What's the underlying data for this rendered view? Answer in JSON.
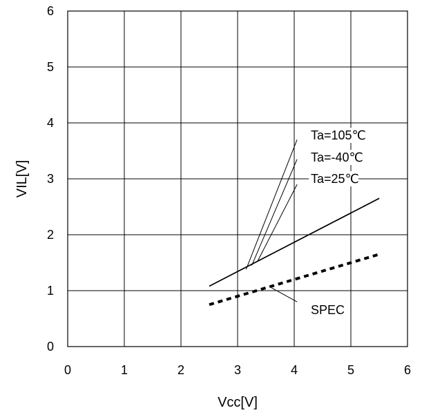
{
  "chart_data": {
    "type": "line",
    "title": "",
    "xlabel": "Vcc[V]",
    "ylabel": "VIL[V]",
    "xlim": [
      0,
      6
    ],
    "ylim": [
      0,
      6
    ],
    "xticks": [
      "0",
      "1",
      "2",
      "3",
      "4",
      "5",
      "6"
    ],
    "yticks": [
      "0",
      "1",
      "2",
      "3",
      "4",
      "5",
      "6"
    ],
    "grid": true,
    "series": [
      {
        "name": "Ta=105℃",
        "x": [
          2.5,
          5.5
        ],
        "y": [
          1.08,
          2.65
        ]
      },
      {
        "name": "Ta=-40℃",
        "x": [
          2.5,
          5.5
        ],
        "y": [
          1.08,
          2.65
        ]
      },
      {
        "name": "Ta=25℃",
        "x": [
          2.5,
          5.5
        ],
        "y": [
          1.08,
          2.65
        ]
      },
      {
        "name": "SPEC",
        "x": [
          2.5,
          5.5
        ],
        "y": [
          0.75,
          1.65
        ],
        "style": "dashed"
      }
    ],
    "annotations": [
      {
        "text": "Ta=105℃",
        "target_series": "Ta=105℃"
      },
      {
        "text": "Ta=-40℃",
        "target_series": "Ta=-40℃"
      },
      {
        "text": "Ta=25℃",
        "target_series": "Ta=25℃"
      },
      {
        "text": "SPEC",
        "target_series": "SPEC"
      }
    ]
  }
}
